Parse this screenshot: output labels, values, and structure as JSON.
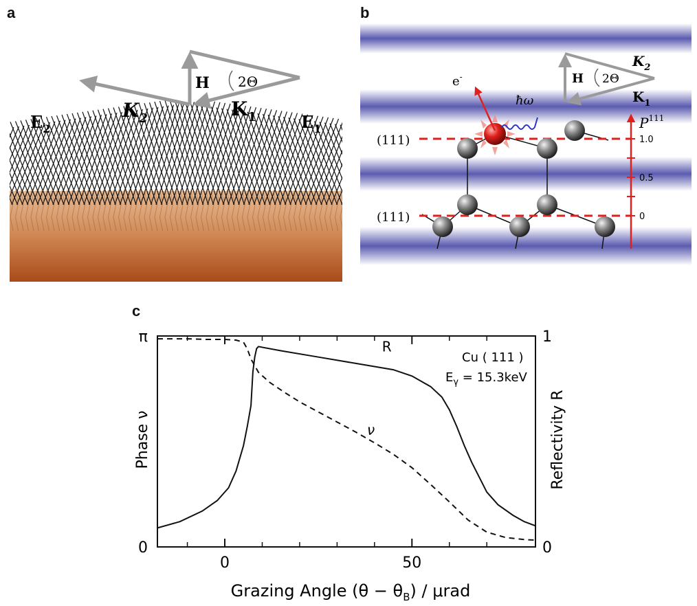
{
  "panels": {
    "a": {
      "letter": "a",
      "labels": {
        "E2": "E",
        "E2_sub": "2",
        "E1": "E",
        "E1_sub": "1",
        "K2": "K",
        "K2_sub": "2",
        "K1": "K",
        "K1_sub": "1",
        "H": "H",
        "angle": "2Θ"
      }
    },
    "b": {
      "letter": "b",
      "labels": {
        "H": "H",
        "angle": "2Θ",
        "K2": "K",
        "K2_sub": "2",
        "K1": "K",
        "K1_sub": "1",
        "electron": "e",
        "electron_sup": "-",
        "photon": "ħω",
        "plane_top": "(111)",
        "plane_bottom": "(111)",
        "P": "P",
        "P_sup": "111",
        "ticks": [
          "1.0",
          "0.5",
          "0"
        ]
      }
    },
    "c": {
      "letter": "c"
    }
  },
  "colors": {
    "accent_red": "#e0201c",
    "band_blue": "#5b5bb0",
    "copper_top": "#e6b48c",
    "copper_bottom": "#a84b1a",
    "arrow_gray": "#9a9a9a"
  },
  "chart_data": {
    "type": "line",
    "title": "",
    "xlabel": "Grazing Angle (θ − θ",
    "xlabel_sub": "B",
    "xlabel_tail": ") / μrad",
    "ylabel_left": "Phase ν",
    "ylabel_right": "Reflectivity R",
    "xlim": [
      -18,
      83
    ],
    "x_ticks": [
      {
        "value": 0,
        "label": "0"
      },
      {
        "value": 50,
        "label": "50"
      }
    ],
    "x_minor_ticks": [
      -10,
      10,
      20,
      30,
      40,
      60,
      70
    ],
    "y_left": {
      "lim": [
        0,
        3.1416
      ],
      "ticks": [
        {
          "value": 0,
          "label": "0"
        },
        {
          "value": 3.1416,
          "label": "π"
        }
      ]
    },
    "y_right": {
      "lim": [
        0,
        1
      ],
      "ticks": [
        {
          "value": 0,
          "label": "0"
        },
        {
          "value": 1,
          "label": "1"
        }
      ]
    },
    "annotation": {
      "line1": "Cu ( 111 )",
      "line2": "E",
      "line2_sub": "γ",
      "line2_tail": " = 15.3keV"
    },
    "series": [
      {
        "name": "R",
        "style": "solid",
        "axis": "right",
        "x": [
          -18,
          -12,
          -6,
          -2,
          1,
          3,
          5,
          6,
          7,
          7.5,
          8,
          8.5,
          9,
          15,
          25,
          35,
          45,
          50,
          55,
          58,
          60,
          62,
          64,
          66,
          68,
          70,
          73,
          77,
          80,
          83
        ],
        "y": [
          0.09,
          0.12,
          0.17,
          0.22,
          0.28,
          0.36,
          0.48,
          0.57,
          0.67,
          0.83,
          0.9,
          0.94,
          0.95,
          0.93,
          0.9,
          0.87,
          0.84,
          0.81,
          0.76,
          0.71,
          0.65,
          0.57,
          0.48,
          0.4,
          0.33,
          0.26,
          0.2,
          0.15,
          0.12,
          0.1
        ]
      },
      {
        "name": "ν",
        "style": "dashed",
        "axis": "left",
        "x": [
          -18,
          -10,
          -5,
          0,
          3,
          5,
          6,
          7,
          9,
          12,
          16,
          20,
          25,
          30,
          35,
          40,
          45,
          50,
          55,
          60,
          65,
          70,
          75,
          80,
          83
        ],
        "y": [
          3.1,
          3.1,
          3.09,
          3.09,
          3.08,
          3.05,
          2.95,
          2.8,
          2.6,
          2.45,
          2.3,
          2.16,
          2.01,
          1.86,
          1.71,
          1.55,
          1.38,
          1.18,
          0.93,
          0.67,
          0.4,
          0.22,
          0.14,
          0.11,
          0.1
        ]
      }
    ]
  }
}
